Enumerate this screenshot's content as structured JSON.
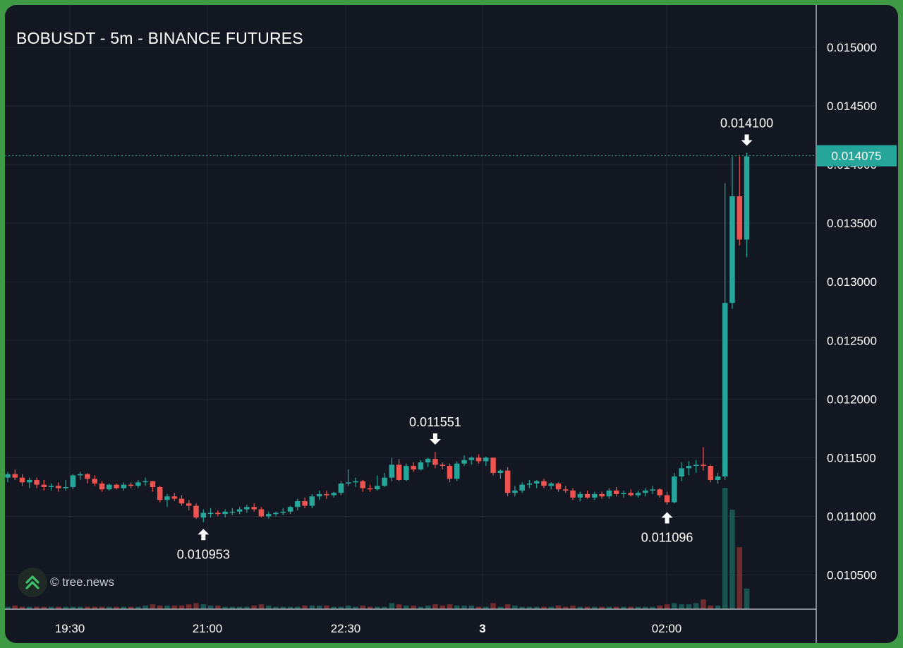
{
  "chart_title": "BOBUSDT - 5m - BINANCE FUTURES",
  "watermark": "© tree.news",
  "colors": {
    "background": "#131722",
    "border": "#3f9a45",
    "up": "#26a69a",
    "down": "#ef5350",
    "grid": "#232734",
    "text": "#ffffff",
    "price_tag": "#26a69a"
  },
  "chart_data": {
    "type": "candlestick",
    "interval": "5m",
    "ylim": [
      0.0102,
      0.01528
    ],
    "y_ticks": [
      "0.010500",
      "0.011000",
      "0.011500",
      "0.012000",
      "0.012500",
      "0.013000",
      "0.013500",
      "0.014000",
      "0.014500",
      "0.015000"
    ],
    "x_ticks": [
      "19:30",
      "21:00",
      "22:30",
      "3",
      "02:00"
    ],
    "last_price": "0.014075",
    "annotations": [
      {
        "label": "0.010953",
        "kind": "low",
        "price": 0.010953
      },
      {
        "label": "0.011551",
        "kind": "high",
        "price": 0.011551
      },
      {
        "label": "0.011096",
        "kind": "low",
        "price": 0.011096
      },
      {
        "label": "0.014100",
        "kind": "high",
        "price": 0.0141
      }
    ],
    "ohlc": [
      [
        0.01133,
        0.01138,
        0.01129,
        0.01136
      ],
      [
        0.01136,
        0.0114,
        0.01131,
        0.01133
      ],
      [
        0.01133,
        0.01136,
        0.01126,
        0.01129
      ],
      [
        0.01129,
        0.01133,
        0.01124,
        0.01131
      ],
      [
        0.01131,
        0.01133,
        0.01124,
        0.01127
      ],
      [
        0.01127,
        0.01131,
        0.01122,
        0.01125
      ],
      [
        0.01125,
        0.01128,
        0.01122,
        0.01126
      ],
      [
        0.01126,
        0.01129,
        0.01121,
        0.01124
      ],
      [
        0.01124,
        0.01131,
        0.01122,
        0.01125
      ],
      [
        0.01125,
        0.01136,
        0.01123,
        0.01135
      ],
      [
        0.01135,
        0.01138,
        0.01131,
        0.01136
      ],
      [
        0.01136,
        0.01137,
        0.01128,
        0.01132
      ],
      [
        0.01132,
        0.01135,
        0.01126,
        0.01128
      ],
      [
        0.01128,
        0.0113,
        0.01121,
        0.01123
      ],
      [
        0.01123,
        0.01128,
        0.01122,
        0.01127
      ],
      [
        0.01127,
        0.01128,
        0.01123,
        0.01124
      ],
      [
        0.01124,
        0.01129,
        0.01122,
        0.01127
      ],
      [
        0.01127,
        0.01129,
        0.01124,
        0.01126
      ],
      [
        0.01126,
        0.01131,
        0.01124,
        0.01129
      ],
      [
        0.01129,
        0.01133,
        0.01126,
        0.0113
      ],
      [
        0.0113,
        0.0113,
        0.01121,
        0.01125
      ],
      [
        0.01125,
        0.01126,
        0.01112,
        0.01114
      ],
      [
        0.01114,
        0.01119,
        0.01108,
        0.01117
      ],
      [
        0.01117,
        0.0112,
        0.01113,
        0.01115
      ],
      [
        0.01115,
        0.01118,
        0.01109,
        0.01111
      ],
      [
        0.01111,
        0.01114,
        0.01105,
        0.01109
      ],
      [
        0.01109,
        0.01111,
        0.01098,
        0.01099
      ],
      [
        0.01099,
        0.01106,
        0.01095,
        0.01103
      ],
      [
        0.01103,
        0.01107,
        0.01099,
        0.01103
      ],
      [
        0.01103,
        0.01105,
        0.011,
        0.01102
      ],
      [
        0.01102,
        0.01106,
        0.01099,
        0.01104
      ],
      [
        0.01104,
        0.01107,
        0.01101,
        0.01104
      ],
      [
        0.01104,
        0.01108,
        0.01102,
        0.01106
      ],
      [
        0.01106,
        0.0111,
        0.01103,
        0.01108
      ],
      [
        0.01108,
        0.01111,
        0.01104,
        0.01106
      ],
      [
        0.01106,
        0.01108,
        0.01099,
        0.011
      ],
      [
        0.011,
        0.01104,
        0.01098,
        0.01102
      ],
      [
        0.01102,
        0.01104,
        0.011,
        0.01103
      ],
      [
        0.01103,
        0.01107,
        0.01101,
        0.01104
      ],
      [
        0.01104,
        0.01109,
        0.01102,
        0.01108
      ],
      [
        0.01108,
        0.01115,
        0.01105,
        0.01113
      ],
      [
        0.01113,
        0.01116,
        0.01107,
        0.01109
      ],
      [
        0.01109,
        0.01119,
        0.01107,
        0.01117
      ],
      [
        0.01117,
        0.01122,
        0.01114,
        0.01119
      ],
      [
        0.01119,
        0.01122,
        0.01115,
        0.01118
      ],
      [
        0.01118,
        0.01121,
        0.01116,
        0.0112
      ],
      [
        0.0112,
        0.0113,
        0.01118,
        0.01128
      ],
      [
        0.01128,
        0.0114,
        0.01126,
        0.01129
      ],
      [
        0.01129,
        0.01133,
        0.01125,
        0.0113
      ],
      [
        0.0113,
        0.01131,
        0.01121,
        0.01124
      ],
      [
        0.01124,
        0.01127,
        0.01121,
        0.01123
      ],
      [
        0.01123,
        0.01135,
        0.01122,
        0.01126
      ],
      [
        0.01126,
        0.01137,
        0.01125,
        0.01133
      ],
      [
        0.01133,
        0.0115,
        0.0113,
        0.01144
      ],
      [
        0.01144,
        0.01149,
        0.0113,
        0.01131
      ],
      [
        0.01131,
        0.01145,
        0.0113,
        0.01143
      ],
      [
        0.01143,
        0.01146,
        0.01138,
        0.0114
      ],
      [
        0.0114,
        0.01148,
        0.01139,
        0.01146
      ],
      [
        0.01146,
        0.0115,
        0.01142,
        0.01149
      ],
      [
        0.01149,
        0.01155,
        0.01141,
        0.01144
      ],
      [
        0.01144,
        0.01146,
        0.0114,
        0.01143
      ],
      [
        0.01143,
        0.01145,
        0.01129,
        0.01132
      ],
      [
        0.01132,
        0.01147,
        0.0113,
        0.01145
      ],
      [
        0.01145,
        0.01152,
        0.01143,
        0.01148
      ],
      [
        0.01148,
        0.01151,
        0.01144,
        0.0115
      ],
      [
        0.0115,
        0.01153,
        0.01145,
        0.01147
      ],
      [
        0.01147,
        0.01151,
        0.01143,
        0.0115
      ],
      [
        0.0115,
        0.0115,
        0.01135,
        0.01137
      ],
      [
        0.01137,
        0.0114,
        0.01132,
        0.01139
      ],
      [
        0.01139,
        0.01142,
        0.01117,
        0.0112
      ],
      [
        0.0112,
        0.01126,
        0.01117,
        0.01122
      ],
      [
        0.01122,
        0.01129,
        0.0112,
        0.01127
      ],
      [
        0.01127,
        0.01131,
        0.01124,
        0.01128
      ],
      [
        0.01128,
        0.01131,
        0.01124,
        0.0113
      ],
      [
        0.0113,
        0.01132,
        0.01124,
        0.01126
      ],
      [
        0.01126,
        0.01129,
        0.01123,
        0.01128
      ],
      [
        0.01128,
        0.01129,
        0.01121,
        0.01123
      ],
      [
        0.01123,
        0.01126,
        0.0112,
        0.01122
      ],
      [
        0.01122,
        0.01124,
        0.01114,
        0.01116
      ],
      [
        0.01116,
        0.01121,
        0.01113,
        0.01119
      ],
      [
        0.01119,
        0.01122,
        0.01115,
        0.01116
      ],
      [
        0.01116,
        0.01121,
        0.01114,
        0.01119
      ],
      [
        0.01119,
        0.01121,
        0.01115,
        0.01117
      ],
      [
        0.01117,
        0.01124,
        0.01115,
        0.01122
      ],
      [
        0.01122,
        0.01125,
        0.01117,
        0.01119
      ],
      [
        0.01119,
        0.01122,
        0.01116,
        0.0112
      ],
      [
        0.0112,
        0.01123,
        0.01117,
        0.01118
      ],
      [
        0.01118,
        0.01122,
        0.01116,
        0.0112
      ],
      [
        0.0112,
        0.01124,
        0.01117,
        0.01122
      ],
      [
        0.01122,
        0.01126,
        0.01119,
        0.01123
      ],
      [
        0.01123,
        0.01124,
        0.01116,
        0.01118
      ],
      [
        0.01118,
        0.01121,
        0.0111,
        0.01112
      ],
      [
        0.01112,
        0.01137,
        0.01111,
        0.01134
      ],
      [
        0.01134,
        0.01146,
        0.0113,
        0.01141
      ],
      [
        0.01141,
        0.01147,
        0.01135,
        0.01143
      ],
      [
        0.01143,
        0.01148,
        0.01137,
        0.01144
      ],
      [
        0.01144,
        0.01159,
        0.01139,
        0.01143
      ],
      [
        0.01143,
        0.01144,
        0.01129,
        0.01131
      ],
      [
        0.01131,
        0.01137,
        0.01128,
        0.01134
      ],
      [
        0.01134,
        0.01384,
        0.01131,
        0.01282
      ],
      [
        0.01282,
        0.01407,
        0.01277,
        0.01373
      ],
      [
        0.01373,
        0.01407,
        0.01331,
        0.01336
      ],
      [
        0.01336,
        0.0141,
        0.01321,
        0.01407
      ]
    ],
    "volume": [
      0.02,
      0.03,
      0.02,
      0.02,
      0.02,
      0.02,
      0.02,
      0.02,
      0.02,
      0.02,
      0.02,
      0.02,
      0.02,
      0.02,
      0.02,
      0.02,
      0.02,
      0.02,
      0.02,
      0.03,
      0.04,
      0.03,
      0.03,
      0.03,
      0.03,
      0.04,
      0.05,
      0.04,
      0.03,
      0.03,
      0.02,
      0.02,
      0.02,
      0.02,
      0.03,
      0.04,
      0.03,
      0.02,
      0.02,
      0.02,
      0.02,
      0.03,
      0.03,
      0.03,
      0.03,
      0.02,
      0.02,
      0.03,
      0.02,
      0.03,
      0.02,
      0.02,
      0.02,
      0.05,
      0.04,
      0.03,
      0.03,
      0.02,
      0.03,
      0.04,
      0.03,
      0.04,
      0.03,
      0.03,
      0.03,
      0.02,
      0.02,
      0.05,
      0.02,
      0.04,
      0.03,
      0.02,
      0.02,
      0.02,
      0.02,
      0.02,
      0.03,
      0.02,
      0.03,
      0.02,
      0.02,
      0.02,
      0.02,
      0.02,
      0.02,
      0.02,
      0.02,
      0.02,
      0.02,
      0.02,
      0.03,
      0.04,
      0.05,
      0.04,
      0.04,
      0.05,
      0.08,
      0.03,
      0.03,
      1.0,
      0.82,
      0.51,
      0.17
    ]
  }
}
